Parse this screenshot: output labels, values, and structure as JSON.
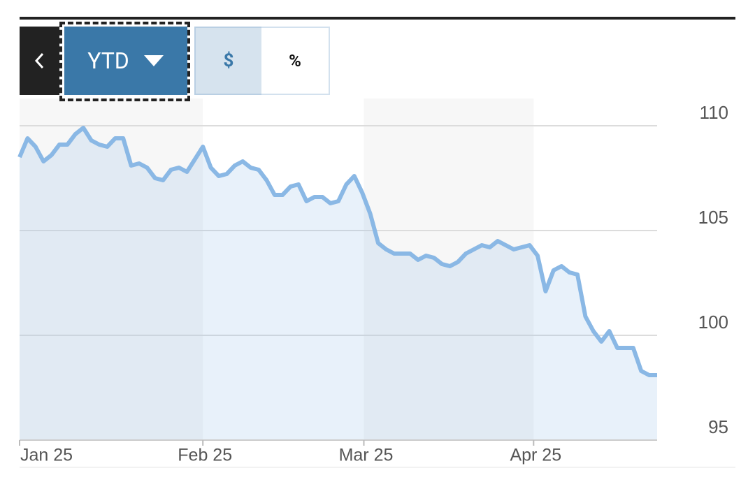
{
  "controls": {
    "range": "YTD",
    "dollar": "$",
    "percent": "%"
  },
  "chart_data": {
    "type": "line",
    "values": [
      108.5,
      109.4,
      109.0,
      108.3,
      108.6,
      109.1,
      109.1,
      109.6,
      109.9,
      109.3,
      109.1,
      109.0,
      109.4,
      109.4,
      108.1,
      108.2,
      108.0,
      107.5,
      107.4,
      107.9,
      108.0,
      107.8,
      108.4,
      109.0,
      108.0,
      107.6,
      107.7,
      108.1,
      108.3,
      108.0,
      107.9,
      107.4,
      106.7,
      106.7,
      107.1,
      107.2,
      106.4,
      106.6,
      106.6,
      106.3,
      106.4,
      107.2,
      107.6,
      106.8,
      105.8,
      104.4,
      104.1,
      103.9,
      103.9,
      103.9,
      103.6,
      103.8,
      103.7,
      103.4,
      103.3,
      103.5,
      103.9,
      104.1,
      104.3,
      104.2,
      104.5,
      104.3,
      104.1,
      104.2,
      104.3,
      103.8,
      102.1,
      103.1,
      103.3,
      103.0,
      102.9,
      100.9,
      100.2,
      99.7,
      100.2,
      99.4,
      99.4,
      99.4,
      98.3,
      98.1,
      98.1
    ],
    "color": "#8ab8e5",
    "xlim": [
      0,
      80
    ],
    "xticks": [
      {
        "value": 0,
        "label": "Jan 25"
      },
      {
        "value": 23,
        "label": "Feb 25"
      },
      {
        "value": 43.2,
        "label": "Mar 25"
      },
      {
        "value": 64.5,
        "label": "Apr 25"
      }
    ],
    "ylim": [
      95,
      111.3
    ],
    "yticks": [
      95,
      100,
      105,
      110
    ],
    "grid": true
  }
}
